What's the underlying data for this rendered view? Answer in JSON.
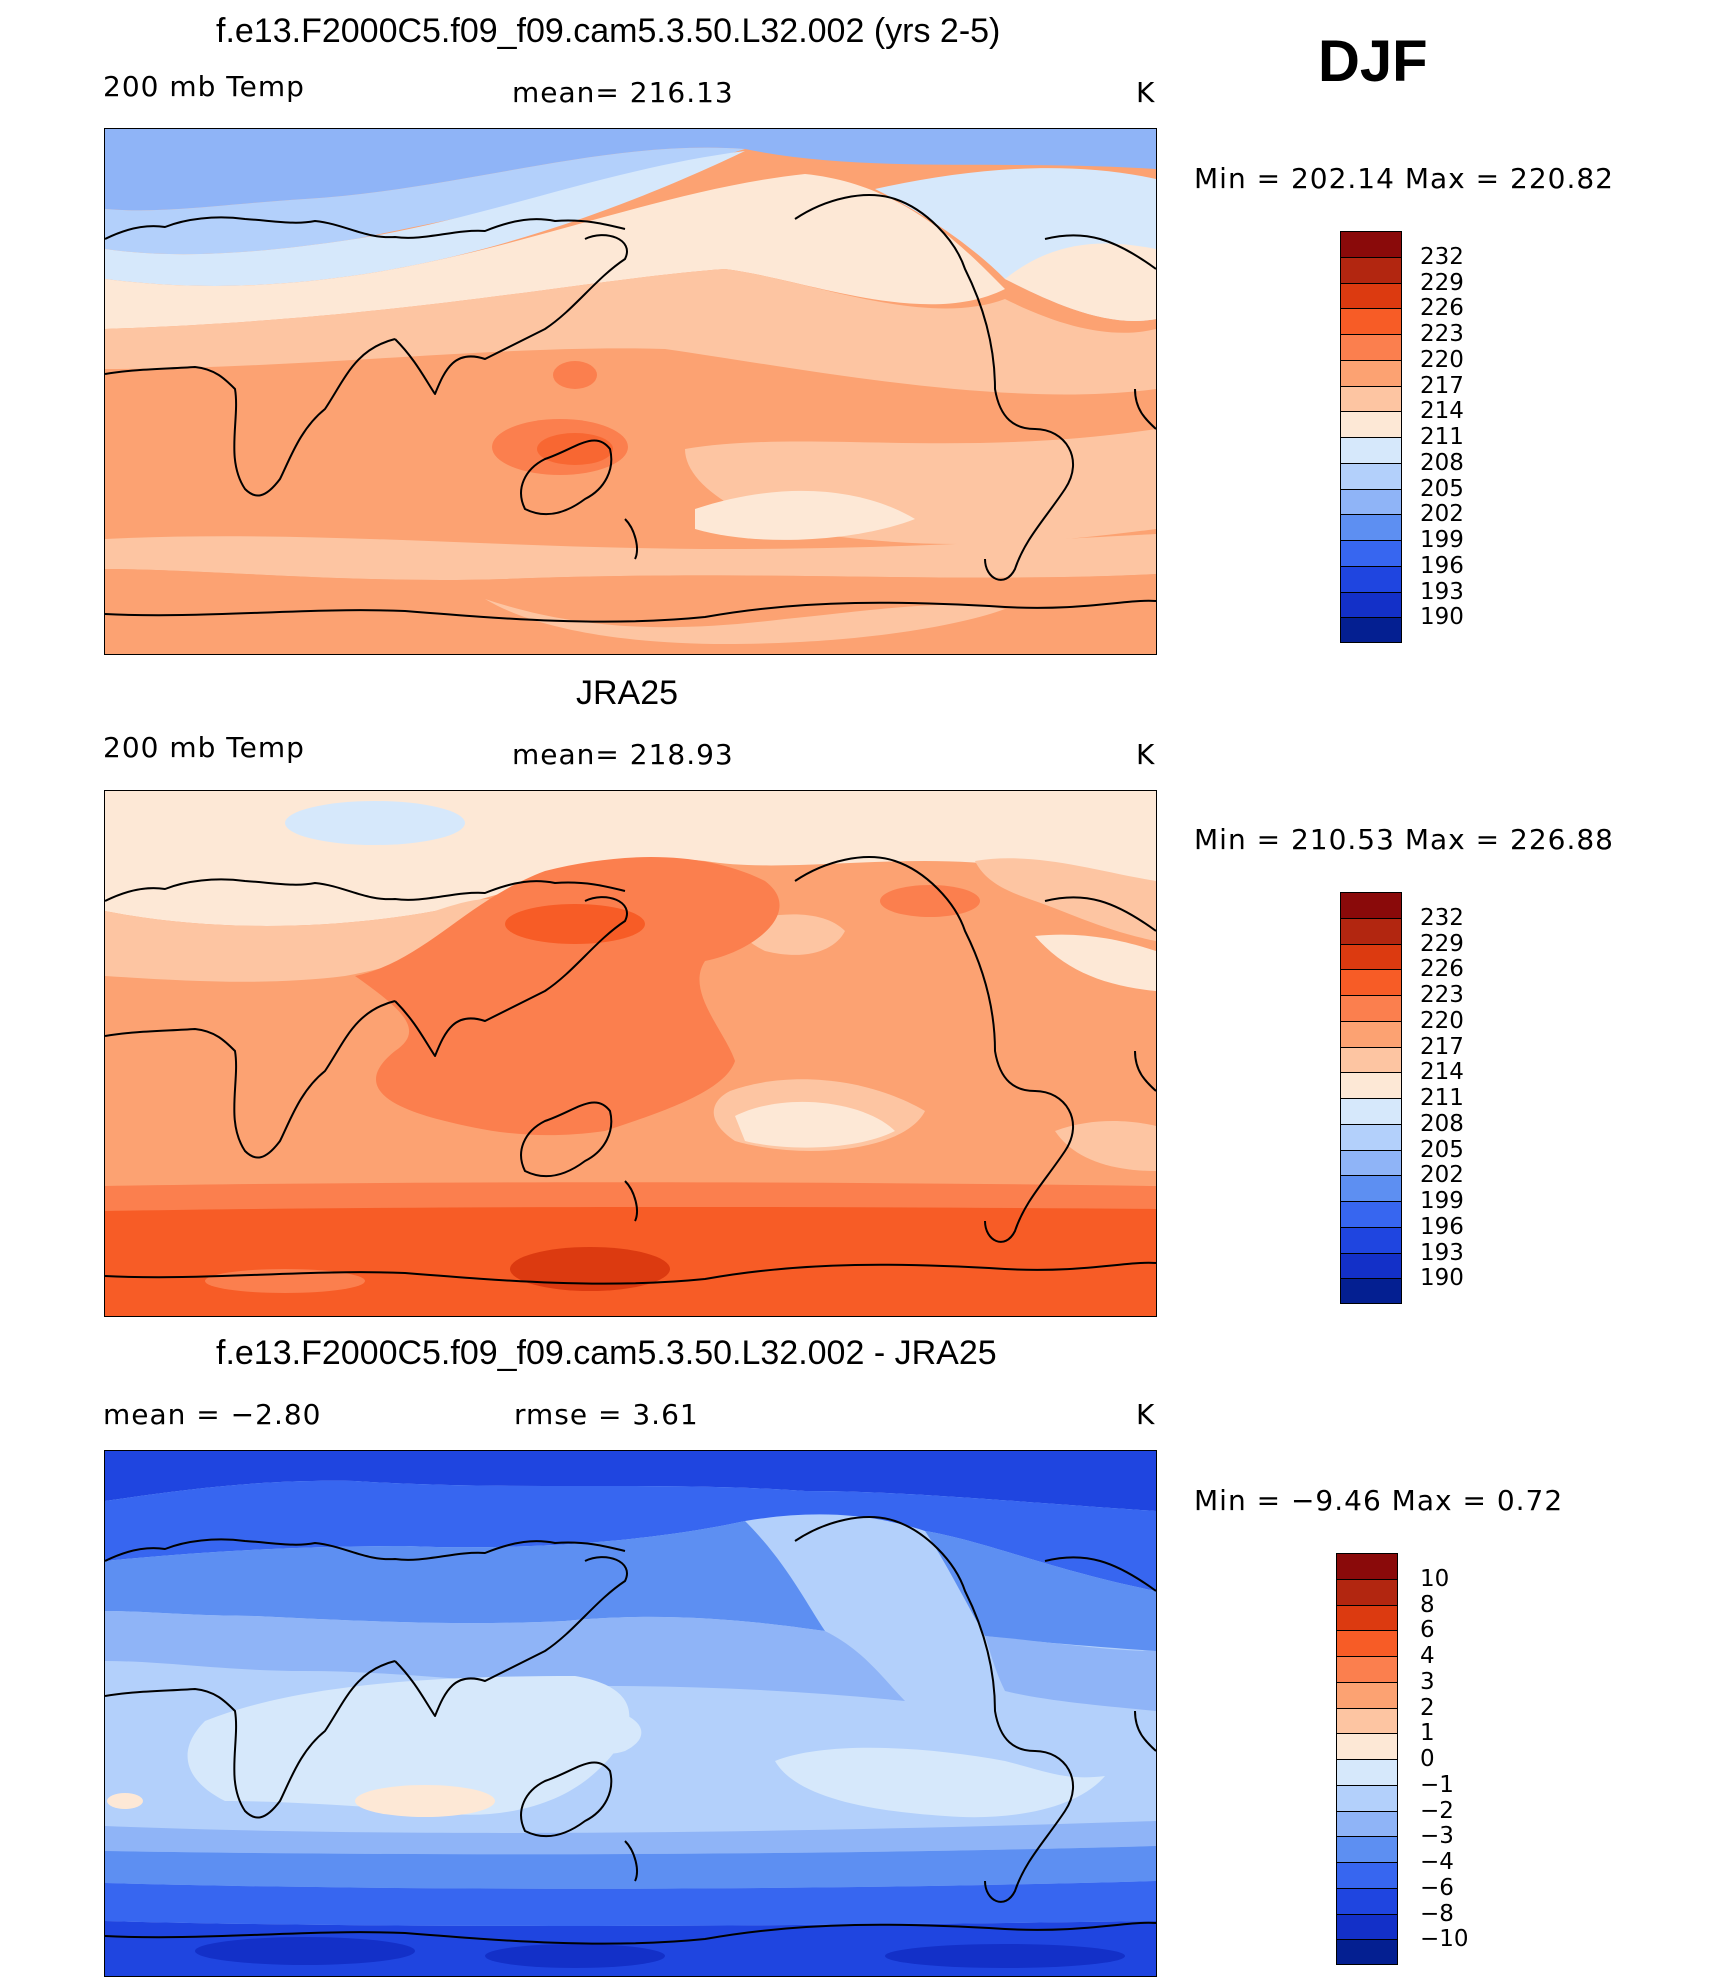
{
  "season": "DJF",
  "panels": [
    {
      "title": "f.e13.F2000C5.f09_f09.cam5.3.50.L32.002 (yrs 2-5)",
      "left_label": "200 mb Temp",
      "center_label": "mean= 216.13",
      "units": "K",
      "minmax": {
        "min_label": "Min",
        "min_value": "202.14",
        "max_label": "Max",
        "max_value": "220.82"
      },
      "colorbar": {
        "labels": [
          "232",
          "229",
          "226",
          "223",
          "220",
          "217",
          "214",
          "211",
          "208",
          "205",
          "202",
          "199",
          "196",
          "193",
          "190"
        ],
        "colors": [
          "#8a0a0a",
          "#b22610",
          "#dc3a10",
          "#f75c26",
          "#fb7f4e",
          "#fca272",
          "#fdc5a2",
          "#fde8d6",
          "#d6e8fb",
          "#b3d0fb",
          "#8fb4f7",
          "#5d8ff2",
          "#3766f0",
          "#1f45e0",
          "#1330c8",
          "#041f91"
        ]
      },
      "base": "#fca272"
    },
    {
      "title": "JRA25",
      "left_label": "200 mb Temp",
      "center_label": "mean= 218.93",
      "units": "K",
      "minmax": {
        "min_label": "Min",
        "min_value": "210.53",
        "max_label": "Max",
        "max_value": "226.88"
      },
      "colorbar": {
        "labels": [
          "232",
          "229",
          "226",
          "223",
          "220",
          "217",
          "214",
          "211",
          "208",
          "205",
          "202",
          "199",
          "196",
          "193",
          "190"
        ],
        "colors": [
          "#8a0a0a",
          "#b22610",
          "#dc3a10",
          "#f75c26",
          "#fb7f4e",
          "#fca272",
          "#fdc5a2",
          "#fde8d6",
          "#d6e8fb",
          "#b3d0fb",
          "#8fb4f7",
          "#5d8ff2",
          "#3766f0",
          "#1f45e0",
          "#1330c8",
          "#041f91"
        ]
      },
      "base": "#fca272"
    },
    {
      "title": "f.e13.F2000C5.f09_f09.cam5.3.50.L32.002 - JRA25",
      "left_label": "mean =   −2.80",
      "center_label": "rmse =    3.61",
      "units": "K",
      "minmax": {
        "min_label": "Min",
        "min_value": "−9.46",
        "max_label": "Max",
        "max_value": "0.72"
      },
      "colorbar": {
        "labels": [
          "10",
          "8",
          "6",
          "4",
          "3",
          "2",
          "1",
          "0",
          "−1",
          "−2",
          "−3",
          "−4",
          "−6",
          "−8",
          "−10"
        ],
        "colors": [
          "#8a0a0a",
          "#b22610",
          "#dc3a10",
          "#f75c26",
          "#fb7f4e",
          "#fca272",
          "#fdc5a2",
          "#fde8d6",
          "#d6e8fb",
          "#b3d0fb",
          "#8fb4f7",
          "#5d8ff2",
          "#3766f0",
          "#1f45e0",
          "#1330c8",
          "#041f91"
        ]
      },
      "base": "#b3d0fb"
    }
  ]
}
